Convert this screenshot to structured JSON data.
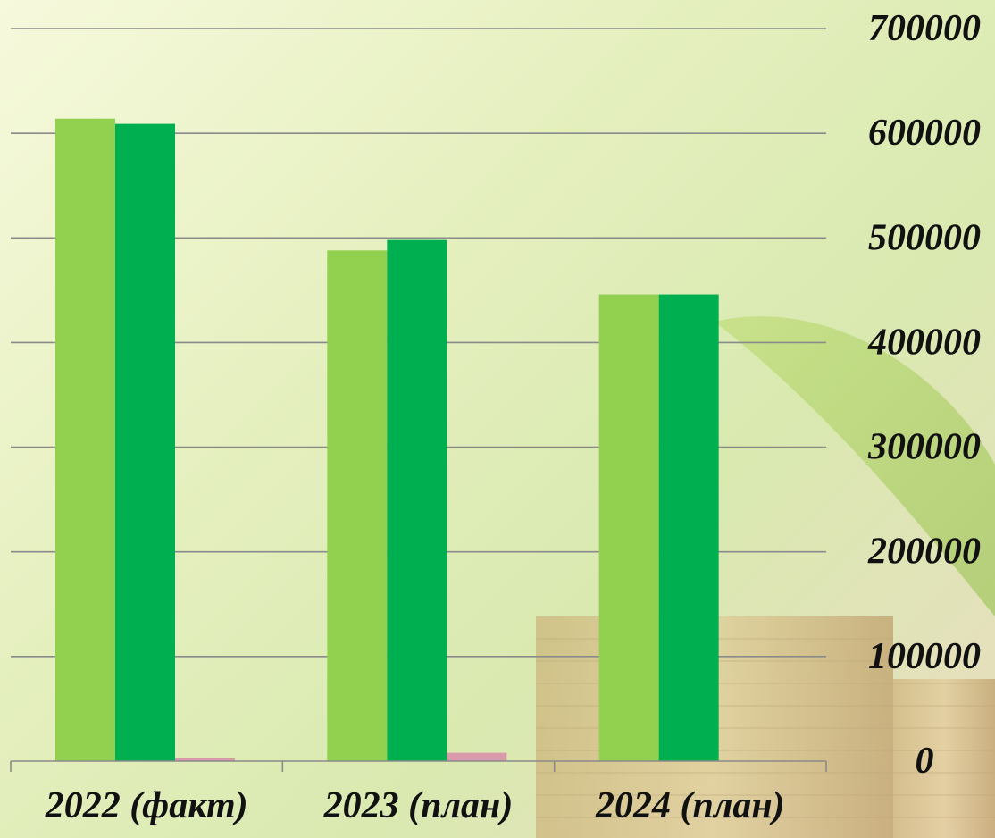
{
  "chart_data": {
    "type": "bar",
    "categories": [
      "2022 (факт)",
      "2023 (план)",
      "2024 (план)"
    ],
    "series": [
      {
        "color": "#92d050",
        "values": [
          614000,
          488000,
          446000
        ]
      },
      {
        "color": "#00b050",
        "values": [
          609000,
          498000,
          446000
        ]
      },
      {
        "color": "#d99aab",
        "values": [
          3000,
          8000,
          0
        ]
      }
    ],
    "ylim": [
      0,
      700000
    ],
    "yticks": [
      "0",
      "100000",
      "200000",
      "300000",
      "400000",
      "500000",
      "600000",
      "700000"
    ],
    "y_axis_position": "right",
    "grid": true,
    "legend": "none"
  }
}
